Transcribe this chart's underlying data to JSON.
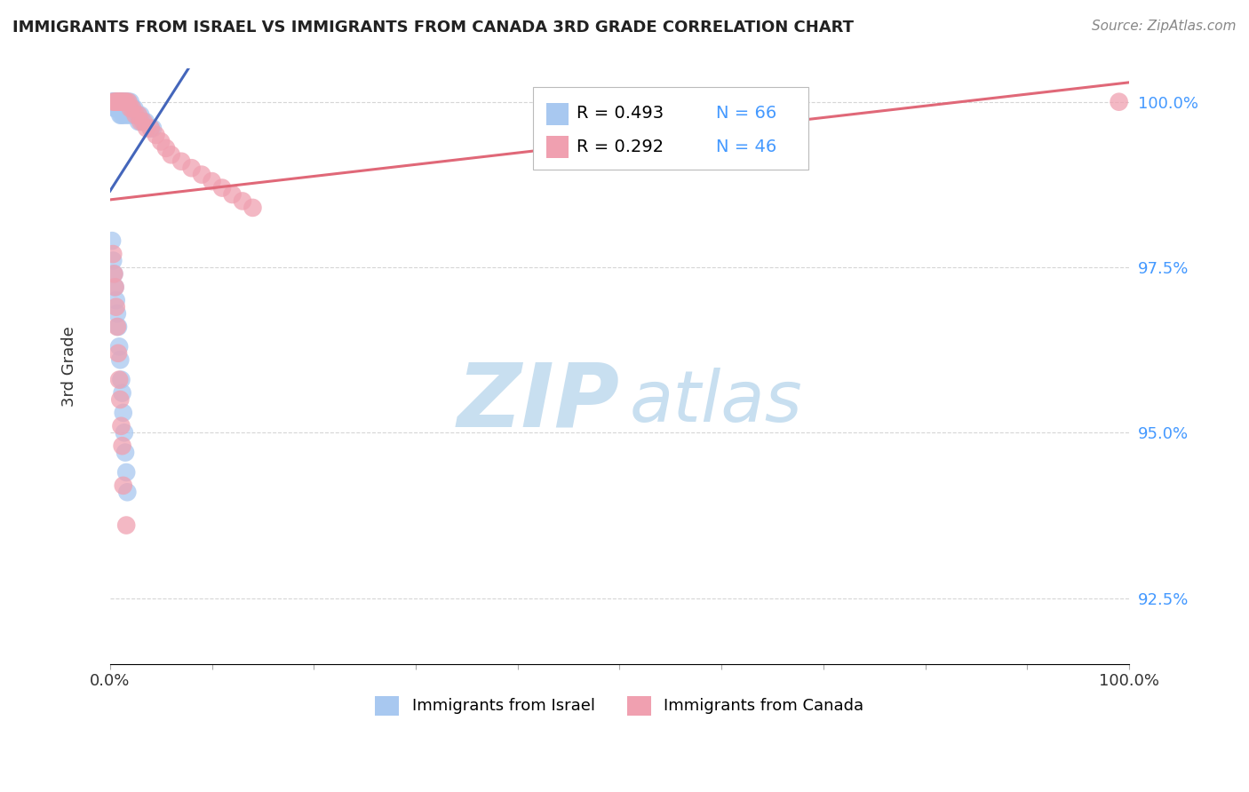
{
  "title": "IMMIGRANTS FROM ISRAEL VS IMMIGRANTS FROM CANADA 3RD GRADE CORRELATION CHART",
  "source": "Source: ZipAtlas.com",
  "ylabel": "3rd Grade",
  "xlim": [
    0.0,
    1.0
  ],
  "ylim": [
    0.915,
    1.005
  ],
  "yticks": [
    0.925,
    0.95,
    0.975,
    1.0
  ],
  "ytick_labels": [
    "92.5%",
    "95.0%",
    "97.5%",
    "100.0%"
  ],
  "legend_R_israel": "R = 0.493",
  "legend_N_israel": "N = 66",
  "legend_R_canada": "R = 0.292",
  "legend_N_canada": "N = 46",
  "color_israel": "#a8c8f0",
  "color_canada": "#f0a0b0",
  "trendline_israel_color": "#4466bb",
  "trendline_canada_color": "#e06878",
  "background_color": "#ffffff",
  "israel_x": [
    0.002,
    0.003,
    0.003,
    0.004,
    0.004,
    0.005,
    0.005,
    0.006,
    0.006,
    0.007,
    0.007,
    0.007,
    0.008,
    0.008,
    0.009,
    0.009,
    0.01,
    0.01,
    0.01,
    0.011,
    0.011,
    0.011,
    0.012,
    0.012,
    0.013,
    0.013,
    0.013,
    0.014,
    0.014,
    0.015,
    0.015,
    0.016,
    0.016,
    0.017,
    0.018,
    0.018,
    0.019,
    0.02,
    0.02,
    0.022,
    0.023,
    0.024,
    0.025,
    0.027,
    0.028,
    0.03,
    0.032,
    0.035,
    0.04,
    0.042,
    0.002,
    0.003,
    0.004,
    0.005,
    0.006,
    0.007,
    0.008,
    0.009,
    0.01,
    0.011,
    0.012,
    0.013,
    0.014,
    0.015,
    0.016,
    0.017
  ],
  "israel_y": [
    1.0,
    1.0,
    1.0,
    1.0,
    1.0,
    1.0,
    0.999,
    1.0,
    0.999,
    1.0,
    1.0,
    0.999,
    1.0,
    0.999,
    1.0,
    0.999,
    1.0,
    0.999,
    0.998,
    1.0,
    0.999,
    0.998,
    1.0,
    0.999,
    1.0,
    0.999,
    0.998,
    1.0,
    0.999,
    1.0,
    0.999,
    1.0,
    0.998,
    0.999,
    1.0,
    0.999,
    0.998,
    1.0,
    0.999,
    0.999,
    0.998,
    0.999,
    0.998,
    0.998,
    0.997,
    0.998,
    0.997,
    0.997,
    0.996,
    0.996,
    0.979,
    0.976,
    0.974,
    0.972,
    0.97,
    0.968,
    0.966,
    0.963,
    0.961,
    0.958,
    0.956,
    0.953,
    0.95,
    0.947,
    0.944,
    0.941
  ],
  "canada_x": [
    0.003,
    0.005,
    0.006,
    0.007,
    0.008,
    0.009,
    0.01,
    0.011,
    0.012,
    0.013,
    0.015,
    0.016,
    0.018,
    0.02,
    0.022,
    0.025,
    0.028,
    0.03,
    0.033,
    0.036,
    0.04,
    0.045,
    0.05,
    0.055,
    0.06,
    0.07,
    0.08,
    0.09,
    0.1,
    0.11,
    0.12,
    0.13,
    0.14,
    0.003,
    0.004,
    0.005,
    0.006,
    0.007,
    0.008,
    0.009,
    0.01,
    0.011,
    0.012,
    0.013,
    0.016,
    0.99
  ],
  "canada_y": [
    1.0,
    1.0,
    1.0,
    1.0,
    1.0,
    1.0,
    1.0,
    1.0,
    1.0,
    1.0,
    1.0,
    1.0,
    1.0,
    0.999,
    0.999,
    0.998,
    0.998,
    0.997,
    0.997,
    0.996,
    0.996,
    0.995,
    0.994,
    0.993,
    0.992,
    0.991,
    0.99,
    0.989,
    0.988,
    0.987,
    0.986,
    0.985,
    0.984,
    0.977,
    0.974,
    0.972,
    0.969,
    0.966,
    0.962,
    0.958,
    0.955,
    0.951,
    0.948,
    0.942,
    0.936,
    1.0
  ],
  "watermark_zip": "ZIP",
  "watermark_atlas": "atlas",
  "watermark_color_zip": "#c8dff0",
  "watermark_color_atlas": "#c8dff0"
}
